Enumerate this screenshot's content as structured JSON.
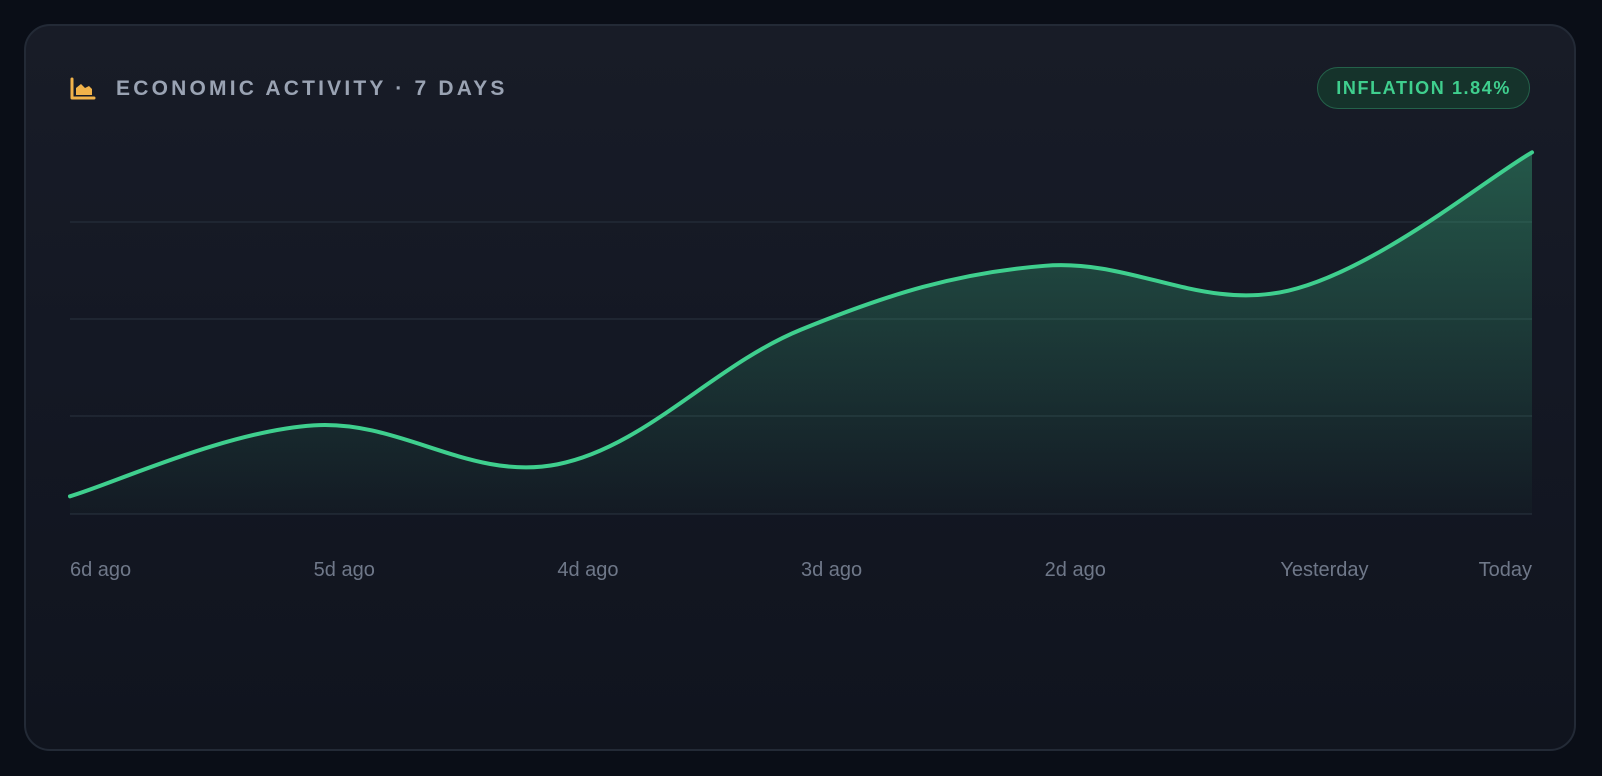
{
  "header": {
    "title": "ECONOMIC ACTIVITY · 7 DAYS",
    "icon": "area-chart-icon"
  },
  "badge": {
    "label": "INFLATION 1.84%"
  },
  "colors": {
    "accent_line": "#3fcf8e",
    "icon": "#f0b24a",
    "grid": "#232a36"
  },
  "chart_data": {
    "type": "area",
    "title": "",
    "xlabel": "",
    "ylabel": "",
    "grid": true,
    "categories": [
      "6d ago",
      "5d ago",
      "4d ago",
      "3d ago",
      "2d ago",
      "Yesterday",
      "Today"
    ],
    "series": [
      {
        "values": [
          5,
          25,
          14,
          52,
          70,
          63,
          102
        ]
      }
    ],
    "ylim": [
      0,
      110
    ]
  }
}
